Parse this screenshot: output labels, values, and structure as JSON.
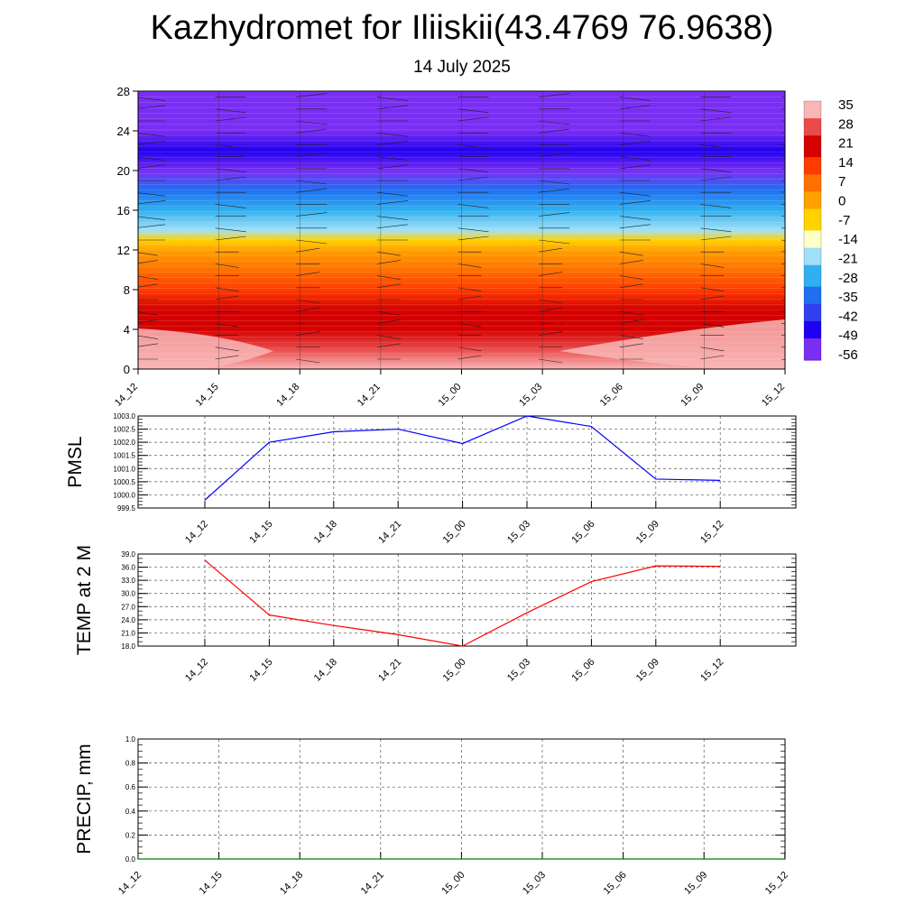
{
  "title": "Kazhydromet for Iliiskii(43.4769 76.9638)",
  "subtitle": "14 July 2025",
  "chart_data": [
    {
      "type": "heatmap",
      "name": "temperature-cross-section",
      "x_categories": [
        "14_12",
        "14_15",
        "14_18",
        "14_21",
        "15_00",
        "15_03",
        "15_06",
        "15_09",
        "15_12"
      ],
      "ylim": [
        0,
        28
      ],
      "yticks": [
        0,
        4,
        8,
        12,
        16,
        20,
        24,
        28
      ],
      "colorbar": {
        "labels": [
          "35",
          "28",
          "21",
          "14",
          "7",
          "0",
          "-7",
          "-14",
          "-21",
          "-28",
          "-35",
          "-42",
          "-49",
          "-56"
        ],
        "colors": [
          "#f8b6b6",
          "#ea4a4a",
          "#d50000",
          "#ff3c00",
          "#ff7000",
          "#ffa200",
          "#ffd200",
          "#ffffc8",
          "#a0e0f8",
          "#30b0f0",
          "#1f70f0",
          "#3040f0",
          "#2000f0",
          "#7a2ef4"
        ]
      },
      "temperature_profile": [
        {
          "level": 0,
          "value": 33
        },
        {
          "level": 2,
          "value": 29
        },
        {
          "level": 4,
          "value": 24
        },
        {
          "level": 6,
          "value": 21
        },
        {
          "level": 8,
          "value": 14
        },
        {
          "level": 10,
          "value": 6
        },
        {
          "level": 12,
          "value": -3
        },
        {
          "level": 13,
          "value": -8
        },
        {
          "level": 14,
          "value": -18
        },
        {
          "level": 16,
          "value": -28
        },
        {
          "level": 18,
          "value": -38
        },
        {
          "level": 20,
          "value": -55
        },
        {
          "level": 22,
          "value": -52
        },
        {
          "level": 24,
          "value": -58
        },
        {
          "level": 28,
          "value": -60
        }
      ],
      "wind_barbs": "on",
      "grid": "off"
    },
    {
      "type": "line",
      "name": "pmsl",
      "ylabel": "PMSL",
      "x_categories": [
        "14_12",
        "14_15",
        "14_18",
        "14_21",
        "15_00",
        "15_03",
        "15_06",
        "15_09",
        "15_12"
      ],
      "series": [
        {
          "color": "#0000ff",
          "values": [
            999.8,
            1002.0,
            1002.4,
            1002.5,
            1001.95,
            1003.0,
            1002.6,
            1000.6,
            1000.55
          ]
        }
      ],
      "ylim": [
        999.5,
        1003.0
      ],
      "yticks": [
        "999.5",
        "1000.0",
        "1000.5",
        "1001.0",
        "1001.5",
        "1002.0",
        "1002.5",
        "1003.0"
      ],
      "grid": "dashed"
    },
    {
      "type": "line",
      "name": "temp-2m",
      "ylabel": "TEMP at 2 M",
      "x_categories": [
        "14_12",
        "14_15",
        "14_18",
        "14_21",
        "15_00",
        "15_03",
        "15_06",
        "15_09",
        "15_12"
      ],
      "series": [
        {
          "color": "#ff0000",
          "values": [
            37.6,
            25.1,
            22.7,
            20.6,
            18.0,
            25.6,
            32.7,
            36.3,
            36.2
          ]
        }
      ],
      "ylim": [
        18.0,
        39.0
      ],
      "yticks": [
        "18.0",
        "21.0",
        "24.0",
        "27.0",
        "30.0",
        "33.0",
        "36.0",
        "39.0"
      ],
      "grid": "dashed"
    },
    {
      "type": "line",
      "name": "precip",
      "ylabel": "PRECIP, mm",
      "x_categories": [
        "14_12",
        "14_15",
        "14_18",
        "14_21",
        "15_00",
        "15_03",
        "15_06",
        "15_09",
        "15_12"
      ],
      "series": [
        {
          "color": "#008000",
          "values": [
            0,
            0,
            0,
            0,
            0,
            0,
            0,
            0,
            0
          ]
        }
      ],
      "ylim": [
        0,
        1.0
      ],
      "yticks": [
        "0.0",
        "0.2",
        "0.4",
        "0.6",
        "0.8",
        "1.0"
      ],
      "grid": "dashed"
    }
  ]
}
